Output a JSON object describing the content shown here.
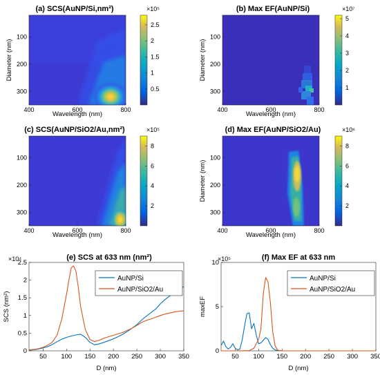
{
  "figure": {
    "panels": [
      {
        "id": "a",
        "title": "(a) SCS(AuNP/Si,nm²)",
        "xlabel": "Wavelength (nm)",
        "ylabel": "Diameter (nm)",
        "x_ticks": [
          "400",
          "600",
          "800"
        ],
        "y_ticks": [
          "100",
          "200",
          "300"
        ],
        "colorbar_exponent": "×10⁵",
        "colorbar_ticks": [
          "2.5",
          "2",
          "1.5",
          "1",
          "0.5"
        ]
      },
      {
        "id": "b",
        "title": "(b) Max EF(AuNP/Si)",
        "xlabel": "Wavelength (nm)",
        "ylabel": "Diameter (nm)",
        "x_ticks": [
          "400",
          "600",
          "800"
        ],
        "y_ticks": [
          "100",
          "200",
          "300"
        ],
        "colorbar_exponent": "×10⁷",
        "colorbar_ticks": [
          "5",
          "4",
          "3",
          "2",
          "1"
        ]
      },
      {
        "id": "c",
        "title": "(c) SCS(AuNP/SiO2/Au,nm²)",
        "xlabel": "Wavelength (nm)",
        "ylabel": "Diameter (nm)",
        "x_ticks": [
          "400",
          "600",
          "800"
        ],
        "y_ticks": [
          "100",
          "200",
          "300"
        ],
        "colorbar_exponent": "×10⁵",
        "colorbar_ticks": [
          "8",
          "6",
          "4",
          "2"
        ]
      },
      {
        "id": "d",
        "title": "(d) Max EF(AuNP/SiO2/Au)",
        "xlabel": "Wavelength (nm)",
        "ylabel": "Diameter (nm)",
        "x_ticks": [
          "400",
          "600",
          "800"
        ],
        "y_ticks": [
          "100",
          "200",
          "300"
        ],
        "colorbar_exponent": "×10⁶",
        "colorbar_ticks": [
          "8",
          "6",
          "4",
          "2"
        ]
      },
      {
        "id": "e",
        "title": "(e) SCS at 633 nm (nm²)",
        "xlabel": "D (nm)",
        "ylabel": "SCS (nm²)",
        "y_exponent": "×10⁴",
        "x_ticks": [
          "50",
          "100",
          "150",
          "200",
          "250",
          "300",
          "350"
        ],
        "y_ticks": [
          "0",
          "0.5",
          "1",
          "1.5",
          "2",
          "2.5"
        ],
        "legend": [
          "AuNP/Si",
          "AuNP/SiO2/Au"
        ]
      },
      {
        "id": "f",
        "title": "(f) Max EF at 633 nm",
        "xlabel": "D (nm)",
        "ylabel": "maxEF",
        "y_exponent": "×10⁵",
        "x_ticks": [
          "50",
          "100",
          "150",
          "200",
          "250",
          "300",
          "350"
        ],
        "y_ticks": [
          "0",
          "5",
          "10"
        ],
        "legend": [
          "AuNP/Si",
          "AuNP/SiO2/Au"
        ]
      }
    ]
  },
  "colors": {
    "series1": "#0072BD",
    "series2": "#D95319"
  },
  "chart_data": [
    {
      "type": "heatmap",
      "title": "(a) SCS(AuNP/Si,nm²)",
      "xlabel": "Wavelength (nm)",
      "ylabel": "Diameter (nm)",
      "xlim": [
        400,
        800
      ],
      "ylim": [
        20,
        350
      ],
      "colorbar": {
        "exponent": "×10⁵",
        "range": [
          0,
          2.8
        ],
        "ticks": [
          0.5,
          1,
          1.5,
          2,
          2.5
        ]
      },
      "colormap": "parula",
      "hotspot": {
        "wavelength": 720,
        "diameter": 320,
        "value": 2.8
      }
    },
    {
      "type": "heatmap",
      "title": "(b) Max EF(AuNP/Si)",
      "xlabel": "Wavelength (nm)",
      "ylabel": "Diameter (nm)",
      "xlim": [
        400,
        800
      ],
      "ylim": [
        20,
        350
      ],
      "colorbar": {
        "exponent": "×10⁷",
        "range": [
          0,
          5.2
        ],
        "ticks": [
          1,
          2,
          3,
          4,
          5
        ]
      },
      "colormap": "parula",
      "hotspot": {
        "wavelength": 770,
        "diameter": 300,
        "value": 5.2
      }
    },
    {
      "type": "heatmap",
      "title": "(c) SCS(AuNP/SiO2/Au,nm²)",
      "xlabel": "Wavelength (nm)",
      "ylabel": "Diameter (nm)",
      "xlim": [
        400,
        800
      ],
      "ylim": [
        20,
        350
      ],
      "colorbar": {
        "exponent": "×10⁵",
        "range": [
          0,
          9
        ],
        "ticks": [
          2,
          4,
          6,
          8
        ]
      },
      "colormap": "parula",
      "hotspot": {
        "wavelength": 770,
        "diameter": 330,
        "value": 9
      }
    },
    {
      "type": "heatmap",
      "title": "(d) Max EF(AuNP/SiO2/Au)",
      "xlabel": "Wavelength (nm)",
      "ylabel": "Diameter (nm)",
      "xlim": [
        400,
        800
      ],
      "ylim": [
        20,
        350
      ],
      "colorbar": {
        "exponent": "×10⁶",
        "range": [
          0,
          9
        ],
        "ticks": [
          2,
          4,
          6,
          8
        ]
      },
      "colormap": "parula",
      "hotspot": {
        "wavelength": 710,
        "diameter": 190,
        "value": 9
      }
    },
    {
      "type": "line",
      "title": "(e) SCS at 633 nm (nm²)",
      "xlabel": "D (nm)",
      "ylabel": "SCS (nm²)",
      "y_exponent": "×10⁴",
      "xlim": [
        20,
        350
      ],
      "ylim": [
        0,
        2.5
      ],
      "legend_location": "top-right",
      "series": [
        {
          "name": "AuNP/Si",
          "x": [
            20,
            30,
            40,
            50,
            60,
            70,
            80,
            90,
            100,
            110,
            120,
            130,
            140,
            150,
            160,
            170,
            180,
            190,
            200,
            210,
            220,
            230,
            240,
            250,
            260,
            270,
            280,
            290,
            300,
            310,
            320,
            330,
            340,
            350
          ],
          "y": [
            0.02,
            0.03,
            0.05,
            0.08,
            0.12,
            0.18,
            0.26,
            0.33,
            0.38,
            0.42,
            0.45,
            0.47,
            0.38,
            0.24,
            0.17,
            0.2,
            0.24,
            0.29,
            0.34,
            0.4,
            0.47,
            0.55,
            0.64,
            0.74,
            0.87,
            0.98,
            1.08,
            1.18,
            1.33,
            1.45,
            1.55,
            1.64,
            1.73,
            1.82
          ]
        },
        {
          "name": "AuNP/SiO2/Au",
          "x": [
            20,
            30,
            40,
            50,
            60,
            70,
            80,
            90,
            100,
            105,
            110,
            115,
            120,
            125,
            130,
            140,
            150,
            160,
            170,
            180,
            190,
            200,
            210,
            220,
            230,
            240,
            250,
            260,
            270,
            280,
            290,
            300,
            310,
            320,
            330,
            340,
            350
          ],
          "y": [
            0.03,
            0.04,
            0.06,
            0.1,
            0.16,
            0.25,
            0.45,
            0.9,
            1.6,
            2.0,
            2.35,
            2.4,
            2.25,
            1.8,
            1.25,
            0.6,
            0.32,
            0.26,
            0.3,
            0.36,
            0.4,
            0.44,
            0.48,
            0.52,
            0.58,
            0.64,
            0.72,
            0.8,
            0.86,
            0.9,
            0.95,
            1.0,
            1.04,
            1.07,
            1.1,
            1.12,
            1.13
          ]
        }
      ]
    },
    {
      "type": "line",
      "title": "(f) Max EF at 633 nm",
      "xlabel": "D (nm)",
      "ylabel": "maxEF",
      "y_exponent": "×10⁵",
      "xlim": [
        20,
        350
      ],
      "ylim": [
        0,
        10
      ],
      "legend_location": "top-right",
      "series": [
        {
          "name": "AuNP/Si",
          "x": [
            20,
            25,
            30,
            35,
            40,
            45,
            50,
            55,
            60,
            65,
            70,
            75,
            80,
            85,
            90,
            95,
            100,
            105,
            110,
            115,
            120,
            125,
            130,
            135,
            140,
            145,
            150,
            160,
            200,
            250,
            300,
            350
          ],
          "y": [
            0.6,
            1.1,
            0.5,
            0.2,
            0.4,
            0.8,
            0.3,
            0.1,
            0.2,
            1.2,
            2.8,
            4.2,
            4.3,
            2.5,
            3.1,
            1.8,
            0.8,
            0.9,
            1.2,
            1.5,
            1.3,
            0.7,
            0.3,
            0.1,
            0.05,
            0.02,
            0.01,
            0,
            0,
            0,
            0,
            0
          ]
        },
        {
          "name": "AuNP/SiO2/Au",
          "x": [
            20,
            50,
            80,
            90,
            95,
            100,
            105,
            110,
            115,
            120,
            125,
            130,
            135,
            140,
            145,
            150,
            200,
            250,
            300,
            350
          ],
          "y": [
            0,
            0,
            0.02,
            0.3,
            0.8,
            1.3,
            2.5,
            6.5,
            8.3,
            7.8,
            5.5,
            2.2,
            0.6,
            0.1,
            0.02,
            0,
            0,
            0,
            0,
            0
          ]
        }
      ]
    }
  ]
}
